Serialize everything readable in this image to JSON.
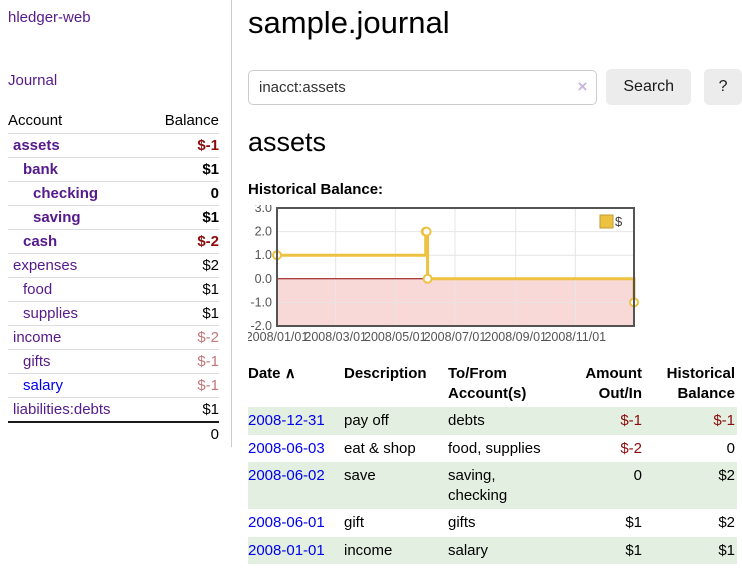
{
  "colors": {
    "link_purple": "#551A8B",
    "link_blue": "#0000EE",
    "negative_strong": "#8b0b0b",
    "negative_soft": "#c17878",
    "row_shade_green": "#e3efe1",
    "chart_line": "#edc240",
    "chart_negative_fill": "#f9d8d8",
    "chart_zero_line": "#8b0000",
    "chart_grid": "#e6e6e6",
    "chart_border": "#545454"
  },
  "sidebar": {
    "app_link": "hledger-web",
    "journal_link": "Journal",
    "account_header": "Account",
    "balance_header": "Balance",
    "accounts": [
      {
        "label": "assets",
        "balance": "$-1",
        "indent": 1,
        "bold": true,
        "link": "purple",
        "bal_style": "neg-strong"
      },
      {
        "label": "bank",
        "balance": "$1",
        "indent": 2,
        "bold": true,
        "link": "purple",
        "bal_style": "plain"
      },
      {
        "label": "checking",
        "balance": "0",
        "indent": 3,
        "bold": true,
        "link": "purple",
        "bal_style": "plain"
      },
      {
        "label": "saving",
        "balance": "$1",
        "indent": 3,
        "bold": true,
        "link": "purple",
        "bal_style": "plain"
      },
      {
        "label": "cash",
        "balance": "$-2",
        "indent": 2,
        "bold": true,
        "link": "purple",
        "bal_style": "neg-strong"
      },
      {
        "label": "expenses",
        "balance": "$2",
        "indent": 1,
        "bold": false,
        "link": "purple",
        "bal_style": "plain"
      },
      {
        "label": "food",
        "balance": "$1",
        "indent": 2,
        "bold": false,
        "link": "purple",
        "bal_style": "plain"
      },
      {
        "label": "supplies",
        "balance": "$1",
        "indent": 2,
        "bold": false,
        "link": "purple",
        "bal_style": "plain"
      },
      {
        "label": "income",
        "balance": "$-2",
        "indent": 1,
        "bold": false,
        "link": "purple",
        "bal_style": "neg-soft"
      },
      {
        "label": "gifts",
        "balance": "$-1",
        "indent": 2,
        "bold": false,
        "link": "purple",
        "bal_style": "neg-soft"
      },
      {
        "label": "salary",
        "balance": "$-1",
        "indent": 2,
        "bold": false,
        "link": "blue",
        "bal_style": "neg-soft"
      },
      {
        "label": "liabilities:debts",
        "balance": "$1",
        "indent": 1,
        "bold": false,
        "link": "purple",
        "bal_style": "plain"
      }
    ],
    "total_balance": "0"
  },
  "header": {
    "title": "sample.journal"
  },
  "search": {
    "value": "inacct:assets",
    "clear_icon": "×",
    "button_label": "Search",
    "help_label": "?"
  },
  "account_page": {
    "title": "assets",
    "chart_label": "Historical Balance:"
  },
  "chart_data": {
    "type": "line",
    "steps": true,
    "series": [
      {
        "name": "$",
        "x": [
          "2008-01-01",
          "2008-06-01",
          "2008-06-02",
          "2008-06-03",
          "2008-12-31"
        ],
        "values": [
          1,
          2,
          2,
          0,
          -1
        ]
      }
    ],
    "xlim": [
      "2008-01-01",
      "2008-12-31"
    ],
    "ylim": [
      -2,
      3
    ],
    "x_tick_labels": [
      "2008/01/01",
      "2008/03/01",
      "2008/05/01",
      "2008/07/01",
      "2008/09/01",
      "2008/11/01"
    ],
    "x_tick_dates": [
      "2008-01-01",
      "2008-03-01",
      "2008-05-01",
      "2008-07-01",
      "2008-09-01",
      "2008-11-01"
    ],
    "y_tick_labels": [
      "3.0",
      "2.0",
      "1.0",
      "0.0",
      "-1.0",
      "-2.0"
    ],
    "y_tick_values": [
      3,
      2,
      1,
      0,
      -1,
      -2
    ],
    "legend": "$",
    "legend_position": "ne",
    "grid": true,
    "negative_region": {
      "from": -2,
      "to": 0
    }
  },
  "register_table": {
    "sort_icon": "∧",
    "columns": [
      "Date",
      "Description",
      "To/From Account(s)",
      "Amount Out/In",
      "Historical Balance"
    ],
    "rows": [
      {
        "date": "2008-12-31",
        "description": "pay off",
        "accounts": "debts",
        "amount": "$-1",
        "amount_neg": true,
        "balance": "$-1",
        "balance_neg": true,
        "shade": true
      },
      {
        "date": "2008-06-03",
        "description": "eat & shop",
        "accounts": "food, supplies",
        "amount": "$-2",
        "amount_neg": true,
        "balance": "0",
        "balance_neg": false,
        "shade": false
      },
      {
        "date": "2008-06-02",
        "description": "save",
        "accounts": "saving, checking",
        "amount": "0",
        "amount_neg": false,
        "balance": "$2",
        "balance_neg": false,
        "shade": true
      },
      {
        "date": "2008-06-01",
        "description": "gift",
        "accounts": "gifts",
        "amount": "$1",
        "amount_neg": false,
        "balance": "$2",
        "balance_neg": false,
        "shade": false
      },
      {
        "date": "2008-01-01",
        "description": "income",
        "accounts": "salary",
        "amount": "$1",
        "amount_neg": false,
        "balance": "$1",
        "balance_neg": false,
        "shade": true
      }
    ]
  }
}
